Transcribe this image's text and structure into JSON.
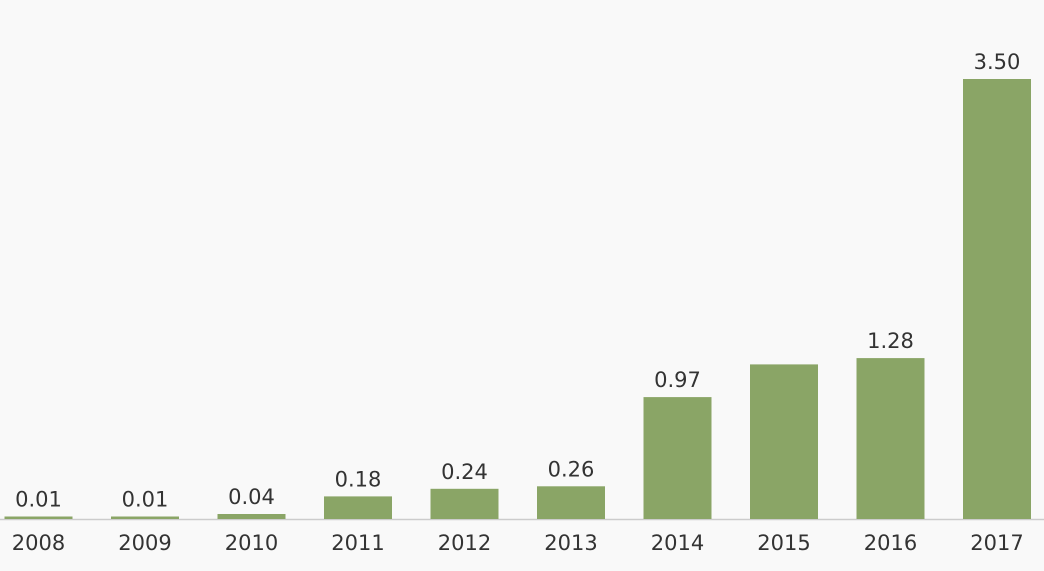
{
  "colors": {
    "background": "#f9f9f9",
    "bar": "#8aa566",
    "axis": "#cccccc",
    "text": "#333333"
  },
  "chart_data": {
    "type": "bar",
    "title": "",
    "xlabel": "",
    "ylabel": "",
    "categories": [
      "2008",
      "2009",
      "2010",
      "2011",
      "2012",
      "2013",
      "2014",
      "2015",
      "2016",
      "2017"
    ],
    "values": [
      0.01,
      0.01,
      0.04,
      0.18,
      0.24,
      0.26,
      0.97,
      1.23,
      1.28,
      3.5
    ],
    "data_labels": [
      "0.01",
      "0.01",
      "0.04",
      "0.18",
      "0.24",
      "0.26",
      "0.97",
      "",
      "1.28",
      "3.50"
    ],
    "ylim": [
      0,
      3.5
    ],
    "grid": false,
    "legend": "none"
  }
}
